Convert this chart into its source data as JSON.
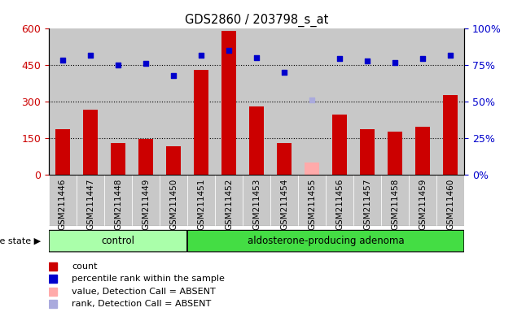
{
  "title": "GDS2860 / 203798_s_at",
  "categories": [
    "GSM211446",
    "GSM211447",
    "GSM211448",
    "GSM211449",
    "GSM211450",
    "GSM211451",
    "GSM211452",
    "GSM211453",
    "GSM211454",
    "GSM211455",
    "GSM211456",
    "GSM211457",
    "GSM211458",
    "GSM211459",
    "GSM211460"
  ],
  "bar_values": [
    185,
    265,
    130,
    145,
    115,
    430,
    590,
    280,
    130,
    50,
    245,
    185,
    175,
    195,
    325
  ],
  "bar_colors": [
    "#cc0000",
    "#cc0000",
    "#cc0000",
    "#cc0000",
    "#cc0000",
    "#cc0000",
    "#cc0000",
    "#cc0000",
    "#cc0000",
    "#ffaaaa",
    "#cc0000",
    "#cc0000",
    "#cc0000",
    "#cc0000",
    "#cc0000"
  ],
  "scatter_values": [
    470,
    490,
    450,
    455,
    405,
    490,
    510,
    480,
    420,
    305,
    475,
    465,
    460,
    475,
    490
  ],
  "scatter_colors": [
    "#0000cc",
    "#0000cc",
    "#0000cc",
    "#0000cc",
    "#0000cc",
    "#0000cc",
    "#0000cc",
    "#0000cc",
    "#0000cc",
    "#aaaadd",
    "#0000cc",
    "#0000cc",
    "#0000cc",
    "#0000cc",
    "#0000cc"
  ],
  "left_ylim": [
    0,
    600
  ],
  "right_ylim": [
    0,
    100
  ],
  "left_yticks": [
    0,
    150,
    300,
    450,
    600
  ],
  "right_yticks": [
    0,
    25,
    50,
    75,
    100
  ],
  "right_yticklabels": [
    "0%",
    "25%",
    "50%",
    "75%",
    "100%"
  ],
  "left_ytick_color": "#cc0000",
  "right_ytick_color": "#0000cc",
  "hlines": [
    150,
    300,
    450
  ],
  "group1_label": "control",
  "group1_count": 5,
  "group2_label": "aldosterone-producing adenoma",
  "group2_count": 10,
  "disease_state_label": "disease state",
  "legend_items": [
    {
      "label": "count",
      "color": "#cc0000"
    },
    {
      "label": "percentile rank within the sample",
      "color": "#0000cc"
    },
    {
      "label": "value, Detection Call = ABSENT",
      "color": "#ffaaaa"
    },
    {
      "label": "rank, Detection Call = ABSENT",
      "color": "#aaaadd"
    }
  ],
  "background_color": "#ffffff",
  "col_bg_color": "#c8c8c8",
  "group1_fill": "#aaffaa",
  "group2_fill": "#44dd44",
  "group_border": "#000000"
}
